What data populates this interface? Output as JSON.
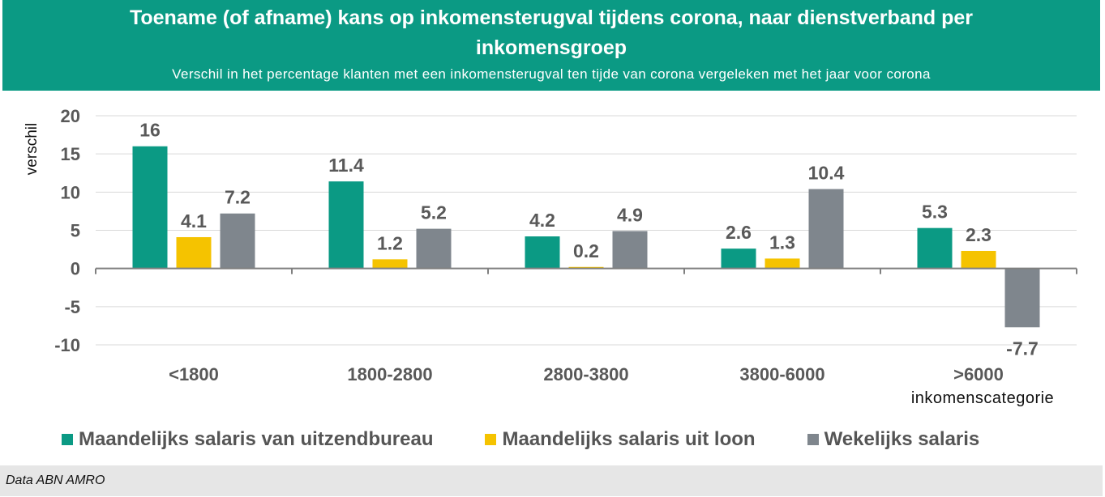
{
  "header": {
    "title": "Toename (of afname) kans op inkomensterugval tijdens corona, naar dienstverband per inkomensgroep",
    "subtitle": "Verschil in het percentage klanten met een inkomensterugval ten tijde van corona vergeleken met het jaar voor corona"
  },
  "chart_data": {
    "type": "bar",
    "ylabel": "verschil",
    "xlabel": "inkomenscategorie",
    "ylim": [
      -10,
      20
    ],
    "yticks": [
      20,
      15,
      10,
      5,
      0,
      -5,
      -10
    ],
    "grid": true,
    "legend_position": "bottom",
    "categories": [
      "<1800",
      "1800-2800",
      "2800-3800",
      "3800-6000",
      ">6000"
    ],
    "series": [
      {
        "name": "Maandelijks salaris van uitzendbureau",
        "color": "#0b9a84",
        "values": [
          16,
          11.4,
          4.2,
          2.6,
          5.3
        ]
      },
      {
        "name": "Maandelijks salaris uit loon",
        "color": "#f5c300",
        "values": [
          4.1,
          1.2,
          0.2,
          1.3,
          2.3
        ]
      },
      {
        "name": "Wekelijks salaris",
        "color": "#7f868d",
        "values": [
          7.2,
          5.2,
          4.9,
          10.4,
          -7.7
        ]
      }
    ]
  },
  "footer": {
    "source": "Data ABN AMRO"
  }
}
